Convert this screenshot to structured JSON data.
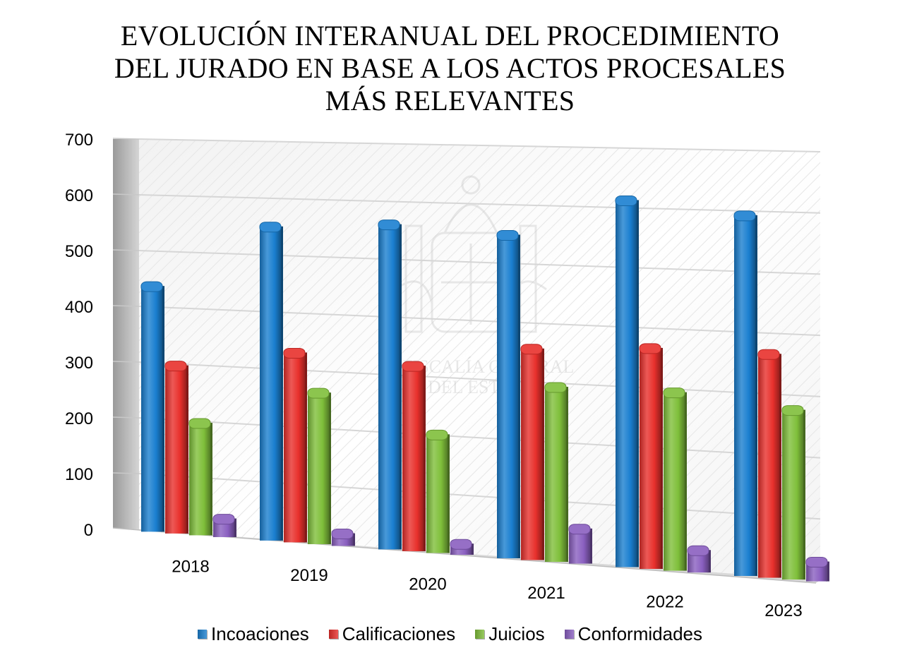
{
  "title_lines": [
    "EVOLUCIÓN INTERANUAL DEL PROCEDIMIENTO",
    "DEL JURADO EN BASE A LOS ACTOS PROCESALES",
    "MÁS RELEVANTES"
  ],
  "watermark_lines": [
    "FISCALÍA GENERAL",
    "DEL ESTADO"
  ],
  "chart_data": {
    "type": "bar",
    "style": "3d-clustered-column",
    "categories": [
      "2018",
      "2019",
      "2020",
      "2021",
      "2022",
      "2023"
    ],
    "series": [
      {
        "name": "Incoaciones",
        "color": "#1a7fd0",
        "values": [
          445,
          558,
          568,
          556,
          620,
          600
        ]
      },
      {
        "name": "Calificaciones",
        "color": "#e8302c",
        "values": [
          305,
          338,
          325,
          364,
          374,
          373
        ]
      },
      {
        "name": "Juicios",
        "color": "#7fbf3a",
        "values": [
          205,
          270,
          209,
          301,
          302,
          283
        ]
      },
      {
        "name": "Conformidades",
        "color": "#8a5fc0",
        "values": [
          38,
          27,
          24,
          64,
          42,
          37
        ]
      }
    ],
    "y_ticks": [
      "0",
      "100",
      "200",
      "300",
      "400",
      "500",
      "600",
      "700"
    ],
    "ylim": [
      0,
      700
    ],
    "grid": true,
    "legend_position": "bottom"
  }
}
